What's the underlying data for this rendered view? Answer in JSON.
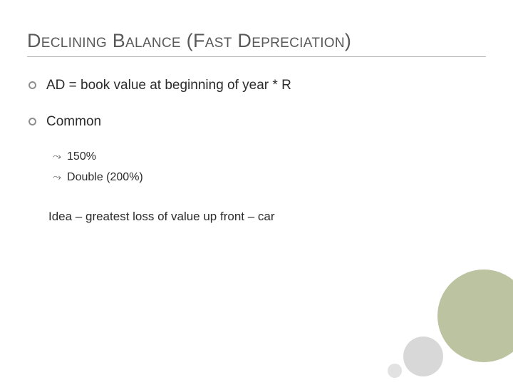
{
  "title": "Declining Balance (Fast Depreciation)",
  "bullets": {
    "b1": "AD = book value at beginning of year * R",
    "b2": "Common",
    "sub1": "150%",
    "sub2": "Double (200%)"
  },
  "idea_line": "Idea – greatest loss of value up front – car",
  "sub_marker": "⤳",
  "colors": {
    "title": "#595959",
    "text": "#2b2b2b",
    "rule": "#b9b9b9",
    "circle_big": "#bcc3a0",
    "circle_mid": "#d8d8d8",
    "circle_small": "#e2e2e2",
    "background": "#ffffff"
  },
  "fonts": {
    "title_size_pt": 20,
    "body_size_pt": 14,
    "sub_size_pt": 12
  }
}
